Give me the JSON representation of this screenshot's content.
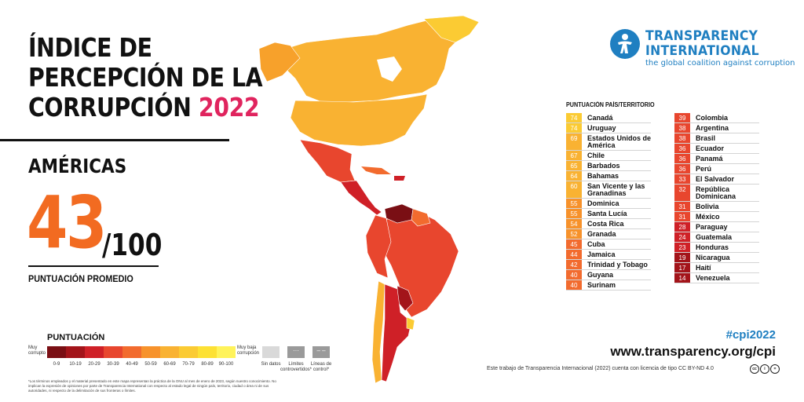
{
  "title": {
    "line1": "ÍNDICE DE",
    "line2": "PERCEPCIÓN DE LA",
    "line3_a": "CORRUPCIÓN",
    "line3_year": "2022"
  },
  "region": "AMÉRICAS",
  "average": {
    "score": "43",
    "out_of": "/100",
    "label": "PUNTUACIÓN PROMEDIO"
  },
  "legend": {
    "title": "PUNTUACIÓN",
    "left_label": "Muy corrupto",
    "right_label": "Muy baja corrupción",
    "ranges": [
      "0-9",
      "10-19",
      "20-29",
      "30-39",
      "40-49",
      "50-59",
      "60-69",
      "70-79",
      "80-89",
      "90-100"
    ],
    "colors": [
      "#7a0f14",
      "#a3141a",
      "#cf2027",
      "#e8462e",
      "#f26b2e",
      "#f7922b",
      "#f9b232",
      "#fbcb33",
      "#fde134",
      "#fff35a"
    ],
    "nodata_label": "Sin datos",
    "disputed_label": "Límites controvertidos*",
    "control_label": "Líneas de control*",
    "nodata_color": "#d9d9d9"
  },
  "footnote": "*Los términos empleados y el material presentado en este mapa representan la práctica de la ONU al mes de enero de 2023, según nuestro conocimiento. No implican la expresión de opiniones por parte de Transparencia International con respecto al estado legal de ningún país, territorio, ciudad o área ni de sus autoridades, ni respecto de la delimitación de sus fronteras o límites.",
  "logo": {
    "line1": "TRANSPARENCY",
    "line2": "INTERNATIONAL",
    "tagline": "the global coalition against corruption",
    "color": "#1f7fc1"
  },
  "table": {
    "header": "PUNTUACIÓN  PAÍS/TERRITORIO",
    "left": [
      {
        "score": "74",
        "name": "Canadá",
        "color": "#fbcb33"
      },
      {
        "score": "74",
        "name": "Uruguay",
        "color": "#fbcb33"
      },
      {
        "score": "69",
        "name": "Estados Unidos de América",
        "color": "#f9b232"
      },
      {
        "score": "67",
        "name": "Chile",
        "color": "#f9b232"
      },
      {
        "score": "65",
        "name": "Barbados",
        "color": "#f9b232"
      },
      {
        "score": "64",
        "name": "Bahamas",
        "color": "#f9b232"
      },
      {
        "score": "60",
        "name": "San Vicente y las Granadinas",
        "color": "#f9b232"
      },
      {
        "score": "55",
        "name": "Dominica",
        "color": "#f7922b"
      },
      {
        "score": "55",
        "name": "Santa Lucía",
        "color": "#f7922b"
      },
      {
        "score": "54",
        "name": "Costa Rica",
        "color": "#f7922b"
      },
      {
        "score": "52",
        "name": "Granada",
        "color": "#f7922b"
      },
      {
        "score": "45",
        "name": "Cuba",
        "color": "#f26b2e"
      },
      {
        "score": "44",
        "name": "Jamaica",
        "color": "#f26b2e"
      },
      {
        "score": "42",
        "name": "Trinidad y Tobago",
        "color": "#f26b2e"
      },
      {
        "score": "40",
        "name": "Guyana",
        "color": "#f26b2e"
      },
      {
        "score": "40",
        "name": "Surinam",
        "color": "#f26b2e"
      }
    ],
    "right": [
      {
        "score": "39",
        "name": "Colombia",
        "color": "#e8462e"
      },
      {
        "score": "38",
        "name": "Argentina",
        "color": "#e8462e"
      },
      {
        "score": "38",
        "name": "Brasil",
        "color": "#e8462e"
      },
      {
        "score": "36",
        "name": "Ecuador",
        "color": "#e8462e"
      },
      {
        "score": "36",
        "name": "Panamá",
        "color": "#e8462e"
      },
      {
        "score": "36",
        "name": "Perú",
        "color": "#e8462e"
      },
      {
        "score": "33",
        "name": "El Salvador",
        "color": "#e8462e"
      },
      {
        "score": "32",
        "name": "República Dominicana",
        "color": "#e8462e"
      },
      {
        "score": "31",
        "name": "Bolivia",
        "color": "#e8462e"
      },
      {
        "score": "31",
        "name": "México",
        "color": "#e8462e"
      },
      {
        "score": "28",
        "name": "Paraguay",
        "color": "#cf2027"
      },
      {
        "score": "24",
        "name": "Guatemala",
        "color": "#cf2027"
      },
      {
        "score": "23",
        "name": "Honduras",
        "color": "#cf2027"
      },
      {
        "score": "19",
        "name": "Nicaragua",
        "color": "#a3141a"
      },
      {
        "score": "17",
        "name": "Haití",
        "color": "#a3141a"
      },
      {
        "score": "14",
        "name": "Venezuela",
        "color": "#a3141a"
      }
    ]
  },
  "hashtag": "#cpi2022",
  "website": "www.transparency.org/cpi",
  "license": "Este trabajo de Transparencia Internacional (2022) cuenta con licencia de tipo CC BY-ND 4.0"
}
